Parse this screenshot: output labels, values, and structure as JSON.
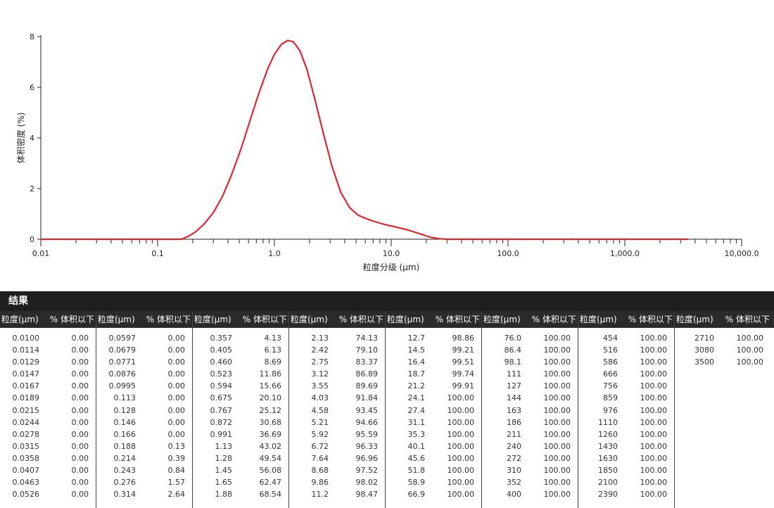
{
  "chart_data": {
    "type": "line",
    "xscale": "log",
    "xlim": [
      0.01,
      10000
    ],
    "ylim": [
      0,
      8
    ],
    "xlabel": "粒度分级 (μm)",
    "ylabel": "体积密度 (%)",
    "xtick_labels": [
      {
        "v": 0.01,
        "label": "0.01"
      },
      {
        "v": 0.1,
        "label": "0.1"
      },
      {
        "v": 1,
        "label": "1.0"
      },
      {
        "v": 10,
        "label": "10.0"
      },
      {
        "v": 100,
        "label": "100.0"
      },
      {
        "v": 1000,
        "label": "1,000.0"
      },
      {
        "v": 10000,
        "label": "10,000.0"
      }
    ],
    "yticks": [
      0,
      2,
      4,
      6,
      8
    ],
    "line_color": "#e0252f",
    "x": [
      0.01,
      0.16,
      0.18,
      0.21,
      0.25,
      0.3,
      0.36,
      0.43,
      0.52,
      0.62,
      0.74,
      0.88,
      1.0,
      1.15,
      1.3,
      1.45,
      1.65,
      1.9,
      2.2,
      2.6,
      3.1,
      3.7,
      4.4,
      5.2,
      6.2,
      7.4,
      9.0,
      11.0,
      14.0,
      18.0,
      22.0,
      26.0,
      30.0,
      3500
    ],
    "y": [
      0,
      0,
      0.1,
      0.28,
      0.6,
      1.05,
      1.7,
      2.55,
      3.6,
      4.7,
      5.8,
      6.75,
      7.3,
      7.7,
      7.85,
      7.8,
      7.45,
      6.7,
      5.6,
      4.25,
      2.9,
      1.85,
      1.25,
      0.95,
      0.8,
      0.68,
      0.57,
      0.48,
      0.36,
      0.2,
      0.07,
      0.02,
      0,
      0
    ]
  },
  "results": {
    "title": "结果",
    "header_size": "粒度(μm)",
    "header_volume": "% 体积以下",
    "columns": [
      [
        [
          "0.0100",
          "0.00"
        ],
        [
          "0.0114",
          "0.00"
        ],
        [
          "0.0129",
          "0.00"
        ],
        [
          "0.0147",
          "0.00"
        ],
        [
          "0.0167",
          "0.00"
        ],
        [
          "0.0189",
          "0.00"
        ],
        [
          "0.0215",
          "0.00"
        ],
        [
          "0.0244",
          "0.00"
        ],
        [
          "0.0278",
          "0.00"
        ],
        [
          "0.0315",
          "0.00"
        ],
        [
          "0.0358",
          "0.00"
        ],
        [
          "0.0407",
          "0.00"
        ],
        [
          "0.0463",
          "0.00"
        ],
        [
          "0.0526",
          "0.00"
        ]
      ],
      [
        [
          "0.0597",
          "0.00"
        ],
        [
          "0.0679",
          "0.00"
        ],
        [
          "0.0771",
          "0.00"
        ],
        [
          "0.0876",
          "0.00"
        ],
        [
          "0.0995",
          "0.00"
        ],
        [
          "0.113",
          "0.00"
        ],
        [
          "0.128",
          "0.00"
        ],
        [
          "0.146",
          "0.00"
        ],
        [
          "0.166",
          "0.00"
        ],
        [
          "0.188",
          "0.13"
        ],
        [
          "0.214",
          "0.39"
        ],
        [
          "0.243",
          "0.84"
        ],
        [
          "0.276",
          "1.57"
        ],
        [
          "0.314",
          "2.64"
        ]
      ],
      [
        [
          "0.357",
          "4.13"
        ],
        [
          "0.405",
          "6.13"
        ],
        [
          "0.460",
          "8.69"
        ],
        [
          "0.523",
          "11.86"
        ],
        [
          "0.594",
          "15.66"
        ],
        [
          "0.675",
          "20.10"
        ],
        [
          "0.767",
          "25.12"
        ],
        [
          "0.872",
          "30.68"
        ],
        [
          "0.991",
          "36.69"
        ],
        [
          "1.13",
          "43.02"
        ],
        [
          "1.28",
          "49.54"
        ],
        [
          "1.45",
          "56.08"
        ],
        [
          "1.65",
          "62.47"
        ],
        [
          "1.88",
          "68.54"
        ]
      ],
      [
        [
          "2.13",
          "74.13"
        ],
        [
          "2.42",
          "79.10"
        ],
        [
          "2.75",
          "83.37"
        ],
        [
          "3.12",
          "86.89"
        ],
        [
          "3.55",
          "89.69"
        ],
        [
          "4.03",
          "91.84"
        ],
        [
          "4.58",
          "93.45"
        ],
        [
          "5.21",
          "94.66"
        ],
        [
          "5.92",
          "95.59"
        ],
        [
          "6.72",
          "96.33"
        ],
        [
          "7.64",
          "96.96"
        ],
        [
          "8.68",
          "97.52"
        ],
        [
          "9.86",
          "98.02"
        ],
        [
          "11.2",
          "98.47"
        ]
      ],
      [
        [
          "12.7",
          "98.86"
        ],
        [
          "14.5",
          "99.21"
        ],
        [
          "16.4",
          "99.51"
        ],
        [
          "18.7",
          "99.74"
        ],
        [
          "21.2",
          "99.91"
        ],
        [
          "24.1",
          "100.00"
        ],
        [
          "27.4",
          "100.00"
        ],
        [
          "31.1",
          "100.00"
        ],
        [
          "35.3",
          "100.00"
        ],
        [
          "40.1",
          "100.00"
        ],
        [
          "45.6",
          "100.00"
        ],
        [
          "51.8",
          "100.00"
        ],
        [
          "58.9",
          "100.00"
        ],
        [
          "66.9",
          "100.00"
        ]
      ],
      [
        [
          "76.0",
          "100.00"
        ],
        [
          "86.4",
          "100.00"
        ],
        [
          "98.1",
          "100.00"
        ],
        [
          "111",
          "100.00"
        ],
        [
          "127",
          "100.00"
        ],
        [
          "144",
          "100.00"
        ],
        [
          "163",
          "100.00"
        ],
        [
          "186",
          "100.00"
        ],
        [
          "211",
          "100.00"
        ],
        [
          "240",
          "100.00"
        ],
        [
          "272",
          "100.00"
        ],
        [
          "310",
          "100.00"
        ],
        [
          "352",
          "100.00"
        ],
        [
          "400",
          "100.00"
        ]
      ],
      [
        [
          "454",
          "100.00"
        ],
        [
          "516",
          "100.00"
        ],
        [
          "586",
          "100.00"
        ],
        [
          "666",
          "100.00"
        ],
        [
          "756",
          "100.00"
        ],
        [
          "859",
          "100.00"
        ],
        [
          "976",
          "100.00"
        ],
        [
          "1110",
          "100.00"
        ],
        [
          "1260",
          "100.00"
        ],
        [
          "1430",
          "100.00"
        ],
        [
          "1630",
          "100.00"
        ],
        [
          "1850",
          "100.00"
        ],
        [
          "2100",
          "100.00"
        ],
        [
          "2390",
          "100.00"
        ]
      ],
      [
        [
          "2710",
          "100.00"
        ],
        [
          "3080",
          "100.00"
        ],
        [
          "3500",
          "100.00"
        ]
      ]
    ]
  }
}
